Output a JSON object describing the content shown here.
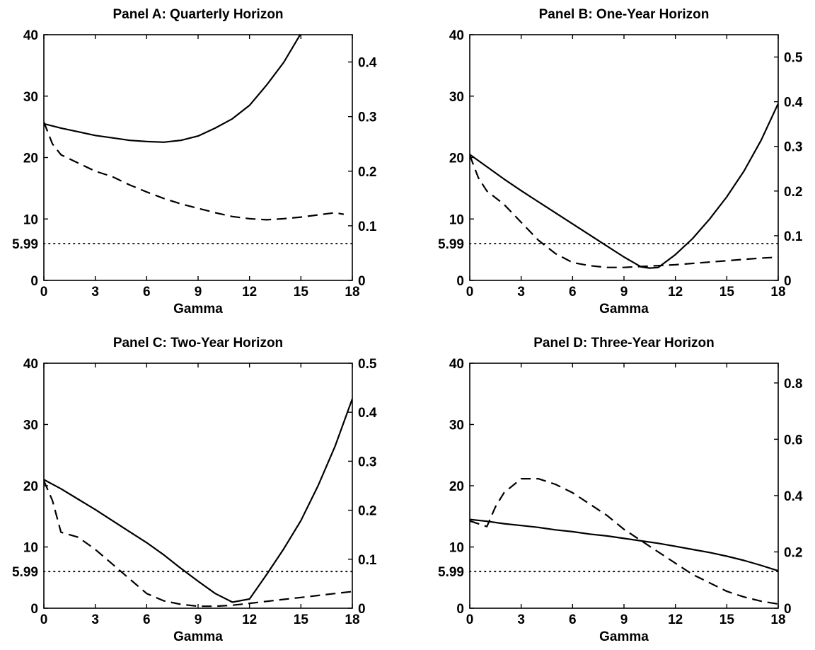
{
  "chart_data": [
    {
      "type": "line",
      "title": "Panel A: Quarterly Horizon",
      "xlabel": "Gamma",
      "ylabel": "",
      "y2label": "",
      "xlim": [
        0,
        18
      ],
      "ylim": [
        0,
        40
      ],
      "y2lim": [
        0,
        0.45
      ],
      "xticks": [
        0,
        3,
        6,
        9,
        12,
        15,
        18
      ],
      "yticks": [
        0,
        10,
        20,
        30,
        40
      ],
      "y2ticks": [
        0,
        0.1,
        0.2,
        0.3,
        0.4
      ],
      "ylabel_extra": "5.99",
      "reference_line": {
        "y": 5.99,
        "style": "dotted"
      },
      "grid": false,
      "series": [
        {
          "axis": "left",
          "style": "solid",
          "x": [
            0,
            1,
            2,
            3,
            4,
            5,
            6,
            7,
            8,
            9,
            10,
            11,
            12,
            13,
            14,
            15
          ],
          "y": [
            25.5,
            24.8,
            24.2,
            23.6,
            23.2,
            22.8,
            22.6,
            22.5,
            22.8,
            23.5,
            24.8,
            26.3,
            28.5,
            31.8,
            35.5,
            40.2
          ]
        },
        {
          "axis": "right",
          "style": "dashed",
          "x": [
            0,
            0.5,
            1,
            2,
            3,
            4,
            5,
            6,
            7,
            8,
            9,
            10,
            11,
            12,
            13,
            14,
            15,
            16,
            17,
            17.5
          ],
          "y": [
            0.29,
            0.25,
            0.23,
            0.215,
            0.2,
            0.19,
            0.175,
            0.162,
            0.15,
            0.14,
            0.132,
            0.124,
            0.117,
            0.113,
            0.111,
            0.113,
            0.116,
            0.12,
            0.124,
            0.121
          ]
        }
      ]
    },
    {
      "type": "line",
      "title": "Panel B: One-Year Horizon",
      "xlabel": "Gamma",
      "ylabel": "",
      "y2label": "",
      "xlim": [
        0,
        18
      ],
      "ylim": [
        0,
        40
      ],
      "y2lim": [
        0,
        0.55
      ],
      "xticks": [
        0,
        3,
        6,
        9,
        12,
        15,
        18
      ],
      "yticks": [
        0,
        10,
        20,
        30,
        40
      ],
      "y2ticks": [
        0,
        0.1,
        0.2,
        0.3,
        0.4,
        0.5
      ],
      "ylabel_extra": "5.99",
      "reference_line": {
        "y": 5.99,
        "style": "dotted"
      },
      "grid": false,
      "series": [
        {
          "axis": "left",
          "style": "solid",
          "x": [
            0,
            1,
            2,
            3,
            4,
            5,
            6,
            7,
            8,
            9,
            10,
            10.5,
            11,
            12,
            13,
            14,
            15,
            16,
            17,
            18
          ],
          "y": [
            20.5,
            18.5,
            16.5,
            14.6,
            12.8,
            11.0,
            9.2,
            7.4,
            5.6,
            3.8,
            2.2,
            2.0,
            2.1,
            4.2,
            6.8,
            10.0,
            13.6,
            17.8,
            22.8,
            28.8
          ]
        },
        {
          "axis": "right",
          "style": "dashed",
          "x": [
            0,
            0.5,
            1,
            2,
            3,
            4,
            5,
            6,
            7,
            8,
            9,
            10,
            11,
            12,
            13,
            14,
            15,
            16,
            17,
            18
          ],
          "y": [
            0.28,
            0.23,
            0.2,
            0.17,
            0.13,
            0.09,
            0.06,
            0.04,
            0.033,
            0.029,
            0.029,
            0.031,
            0.033,
            0.035,
            0.038,
            0.041,
            0.044,
            0.047,
            0.05,
            0.052
          ]
        }
      ]
    },
    {
      "type": "line",
      "title": "Panel C: Two-Year Horizon",
      "xlabel": "Gamma",
      "ylabel": "",
      "y2label": "",
      "xlim": [
        0,
        18
      ],
      "ylim": [
        0,
        40
      ],
      "y2lim": [
        0,
        0.5
      ],
      "xticks": [
        0,
        3,
        6,
        9,
        12,
        15,
        18
      ],
      "yticks": [
        0,
        10,
        20,
        30,
        40
      ],
      "y2ticks": [
        0,
        0.1,
        0.2,
        0.3,
        0.4,
        0.5
      ],
      "ylabel_extra": "5.99",
      "reference_line": {
        "y": 5.99,
        "style": "dotted"
      },
      "grid": false,
      "series": [
        {
          "axis": "left",
          "style": "solid",
          "x": [
            0,
            1,
            2,
            3,
            4,
            5,
            6,
            7,
            8,
            9,
            10,
            11,
            12,
            13,
            14,
            15,
            16,
            17,
            18
          ],
          "y": [
            21,
            19.5,
            17.8,
            16.1,
            14.3,
            12.5,
            10.7,
            8.7,
            6.5,
            4.4,
            2.4,
            1.0,
            1.5,
            5.5,
            9.7,
            14.3,
            20.0,
            26.5,
            34.2
          ]
        },
        {
          "axis": "right",
          "style": "dashed",
          "x": [
            0,
            0.5,
            1,
            2,
            3,
            4,
            5,
            6,
            7,
            8,
            9,
            10,
            11,
            12,
            13,
            14,
            15,
            16,
            17,
            18
          ],
          "y": [
            0.26,
            0.22,
            0.155,
            0.145,
            0.12,
            0.09,
            0.06,
            0.03,
            0.015,
            0.008,
            0.004,
            0.004,
            0.006,
            0.01,
            0.014,
            0.018,
            0.022,
            0.026,
            0.03,
            0.034
          ]
        }
      ]
    },
    {
      "type": "line",
      "title": "Panel D: Three-Year Horizon",
      "xlabel": "Gamma",
      "ylabel": "",
      "y2label": "",
      "xlim": [
        0,
        18
      ],
      "ylim": [
        0,
        40
      ],
      "y2lim": [
        0,
        0.87
      ],
      "xticks": [
        0,
        3,
        6,
        9,
        12,
        15,
        18
      ],
      "yticks": [
        0,
        10,
        20,
        30,
        40
      ],
      "y2ticks": [
        0,
        0.2,
        0.4,
        0.6,
        0.8
      ],
      "ylabel_extra": "5.99",
      "reference_line": {
        "y": 5.99,
        "style": "dotted"
      },
      "grid": false,
      "series": [
        {
          "axis": "left",
          "style": "solid",
          "x": [
            0,
            1,
            2,
            3,
            4,
            5,
            6,
            7,
            8,
            9,
            10,
            11,
            12,
            13,
            14,
            15,
            16,
            17,
            18
          ],
          "y": [
            14.5,
            14.2,
            13.8,
            13.5,
            13.2,
            12.8,
            12.5,
            12.1,
            11.8,
            11.4,
            11.0,
            10.6,
            10.1,
            9.6,
            9.1,
            8.5,
            7.8,
            7.0,
            6.1
          ]
        },
        {
          "axis": "right",
          "style": "dashed",
          "x": [
            0,
            1,
            1.5,
            2,
            3,
            4,
            5,
            6,
            7,
            8,
            9,
            10,
            11,
            12,
            13,
            14,
            15,
            16,
            17,
            18
          ],
          "y": [
            0.31,
            0.29,
            0.36,
            0.41,
            0.46,
            0.46,
            0.44,
            0.41,
            0.37,
            0.33,
            0.28,
            0.24,
            0.2,
            0.16,
            0.12,
            0.09,
            0.06,
            0.04,
            0.025,
            0.015
          ]
        }
      ]
    }
  ]
}
